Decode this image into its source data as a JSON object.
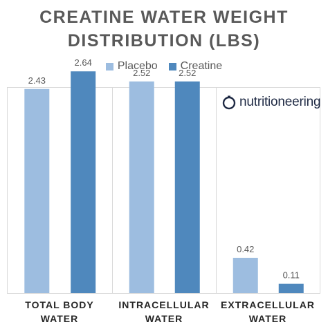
{
  "title_lines": [
    "CREATINE WATER WEIGHT",
    "DISTRIBUTION (LBS)"
  ],
  "logo_text": "nutritioneering",
  "colors": {
    "placebo": "#9dbde0",
    "creatine": "#4f88bd",
    "panel_border": "#d9d9d9"
  },
  "chart_data": {
    "type": "bar",
    "title": "CREATINE WATER WEIGHT DISTRIBUTION (LBS)",
    "categories": [
      [
        "TOTAL BODY",
        "WATER"
      ],
      [
        "INTRACELLULAR",
        "WATER"
      ],
      [
        "EXTRACELLULAR",
        "WATER"
      ]
    ],
    "series": [
      {
        "name": "Placebo",
        "values": [
          2.43,
          2.52,
          0.42
        ],
        "labels": [
          "2.43",
          "2.52",
          "0.42"
        ]
      },
      {
        "name": "Creatine",
        "values": [
          2.64,
          2.52,
          0.11
        ],
        "labels": [
          "2.64",
          "2.52",
          "0.11"
        ]
      }
    ],
    "legend_position": "top",
    "ylim": [
      0,
      3.0
    ],
    "grid": false
  }
}
